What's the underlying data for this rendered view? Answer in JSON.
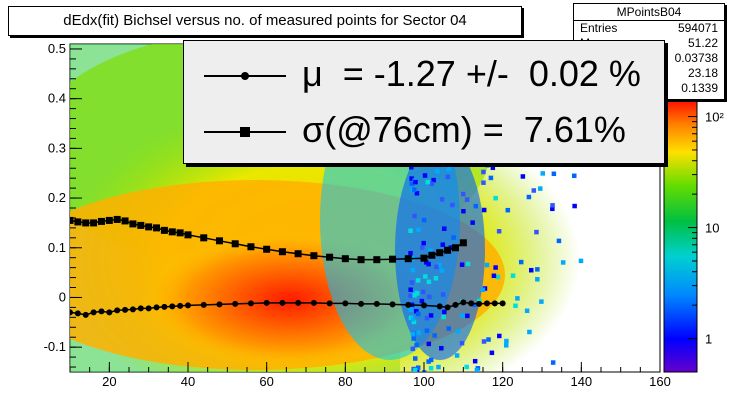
{
  "title": "dEdx(fit) Bichsel versus no. of measured points for Sector 04",
  "stats": {
    "name": "MPointsB04",
    "rows": [
      {
        "label": "Entries",
        "value": "594071"
      },
      {
        "label": "M",
        "value": "51.22"
      },
      {
        "label": "",
        "value": "0.03738"
      },
      {
        "label": "",
        "value": "23.18"
      },
      {
        "label": "",
        "value": "0.1339"
      }
    ]
  },
  "legend": {
    "mu_text": "μ  = -1.27 +/-  0.02 %",
    "sigma_text": "σ(@76cm) =  7.61%"
  },
  "colors": {
    "mean_series": "#000000",
    "sigma_series": "#000000"
  },
  "chart_data": {
    "type": "heatmap",
    "title": "dEdx(fit) Bichsel versus no. of measured points for Sector 04",
    "xlabel": "",
    "ylabel": "",
    "xlim": [
      10,
      160
    ],
    "ylim": [
      -0.15,
      0.51
    ],
    "x_ticks": [
      20,
      40,
      60,
      80,
      100,
      120,
      140,
      160
    ],
    "y_ticks": [
      -0.1,
      0,
      0.1,
      0.2,
      0.3,
      0.4,
      0.5
    ],
    "y_tick_labels": [
      "-0.1",
      "0",
      "0.1",
      "0.2",
      "0.3",
      "0.4",
      "0.5"
    ],
    "colorbar": {
      "scale": "log",
      "range": [
        0.5,
        150
      ],
      "tick_values": [
        1,
        10,
        100
      ],
      "tick_labels": [
        "1",
        "10",
        "10²"
      ]
    },
    "density_peak": {
      "x": 68,
      "y": -0.02
    },
    "series": [
      {
        "marker": "circle",
        "x": [
          10,
          12,
          14,
          16,
          18,
          20,
          22,
          24,
          26,
          28,
          30,
          32,
          34,
          36,
          38,
          40,
          44,
          48,
          52,
          56,
          60,
          64,
          68,
          72,
          76,
          80,
          84,
          88,
          92,
          96,
          100,
          104,
          106,
          108,
          110,
          112,
          114,
          116,
          118,
          120
        ],
        "y": [
          -0.03,
          -0.032,
          -0.035,
          -0.03,
          -0.028,
          -0.03,
          -0.026,
          -0.025,
          -0.024,
          -0.022,
          -0.022,
          -0.02,
          -0.019,
          -0.018,
          -0.017,
          -0.016,
          -0.015,
          -0.014,
          -0.013,
          -0.012,
          -0.011,
          -0.011,
          -0.011,
          -0.011,
          -0.012,
          -0.012,
          -0.013,
          -0.013,
          -0.014,
          -0.015,
          -0.016,
          -0.018,
          -0.02,
          -0.015,
          -0.01,
          -0.012,
          -0.013,
          -0.012,
          -0.012,
          -0.012
        ]
      },
      {
        "marker": "square",
        "x": [
          10,
          12,
          14,
          16,
          18,
          20,
          22,
          24,
          26,
          28,
          30,
          32,
          34,
          36,
          38,
          40,
          44,
          48,
          52,
          56,
          60,
          64,
          68,
          72,
          76,
          80,
          84,
          88,
          92,
          96,
          100,
          102,
          104,
          106,
          108,
          110
        ],
        "y": [
          0.155,
          0.152,
          0.15,
          0.15,
          0.153,
          0.155,
          0.157,
          0.154,
          0.148,
          0.145,
          0.142,
          0.14,
          0.135,
          0.132,
          0.13,
          0.126,
          0.12,
          0.114,
          0.108,
          0.102,
          0.097,
          0.092,
          0.088,
          0.084,
          0.081,
          0.078,
          0.076,
          0.076,
          0.077,
          0.078,
          0.079,
          0.085,
          0.09,
          0.095,
          0.1,
          0.11
        ]
      }
    ]
  }
}
